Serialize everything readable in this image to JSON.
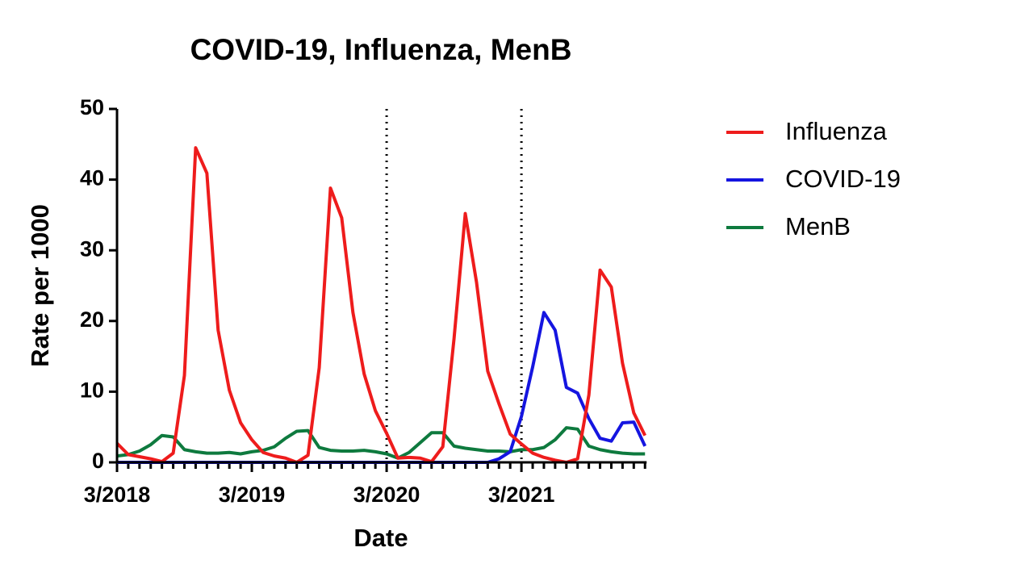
{
  "chart_data": {
    "type": "line",
    "title": "COVID-19, Influenza, MenB",
    "x_label": "Date",
    "y_label": "Rate per 1000",
    "categories": [
      "3/2018",
      null,
      null,
      null,
      null,
      null,
      null,
      null,
      null,
      null,
      null,
      null,
      "3/2019",
      null,
      null,
      null,
      null,
      null,
      null,
      null,
      null,
      null,
      null,
      null,
      "3/2020",
      null,
      null,
      null,
      null,
      null,
      null,
      null,
      null,
      null,
      null,
      null,
      "3/2021",
      null,
      null,
      null,
      null,
      null,
      null,
      null,
      null,
      null,
      null,
      null
    ],
    "series": [
      {
        "name": "Influenza",
        "color": "#ee1c1c",
        "values": [
          2.7,
          1.1,
          0.8,
          0.5,
          0.1,
          1.3,
          12.3,
          44.5,
          40.9,
          18.7,
          10.2,
          5.6,
          3.2,
          1.4,
          0.9,
          0.6,
          0.0,
          1.0,
          13.4,
          38.8,
          34.6,
          21.2,
          12.5,
          7.3,
          4.1,
          0.6,
          0.7,
          0.6,
          0.1,
          2.2,
          17.5,
          35.2,
          25.5,
          12.9,
          8.3,
          4.0,
          2.6,
          1.3,
          0.7,
          0.3,
          0.0,
          0.5,
          9.5,
          27.2,
          24.8,
          14.0,
          7.0,
          3.8
        ]
      },
      {
        "name": "COVID-19",
        "color": "#1515e0",
        "values": [
          0,
          0,
          0,
          0,
          0,
          0,
          0,
          0,
          0,
          0,
          0,
          0,
          0,
          0,
          0,
          0,
          0,
          0,
          0,
          0,
          0,
          0,
          0,
          0,
          0,
          0,
          0,
          0,
          0,
          0,
          0,
          0,
          0,
          0,
          0.5,
          1.5,
          6.5,
          13.5,
          21.2,
          18.7,
          10.6,
          9.8,
          6.2,
          3.4,
          3.0,
          5.6,
          5.7,
          2.3
        ]
      },
      {
        "name": "MenB",
        "color": "#0e7a3e",
        "values": [
          0.9,
          1.1,
          1.6,
          2.5,
          3.8,
          3.6,
          1.8,
          1.5,
          1.3,
          1.3,
          1.4,
          1.2,
          1.5,
          1.7,
          2.2,
          3.4,
          4.4,
          4.5,
          2.1,
          1.7,
          1.6,
          1.6,
          1.7,
          1.5,
          1.2,
          0.6,
          1.4,
          2.8,
          4.2,
          4.2,
          2.3,
          2.0,
          1.8,
          1.6,
          1.6,
          1.5,
          1.8,
          1.8,
          2.1,
          3.2,
          4.9,
          4.7,
          2.3,
          1.8,
          1.5,
          1.3,
          1.2,
          1.2
        ]
      }
    ],
    "ylim": [
      0,
      50
    ],
    "yticks": [
      0,
      10,
      20,
      30,
      40,
      50
    ],
    "reference_lines_at": [
      24,
      36
    ],
    "legend": "right"
  }
}
